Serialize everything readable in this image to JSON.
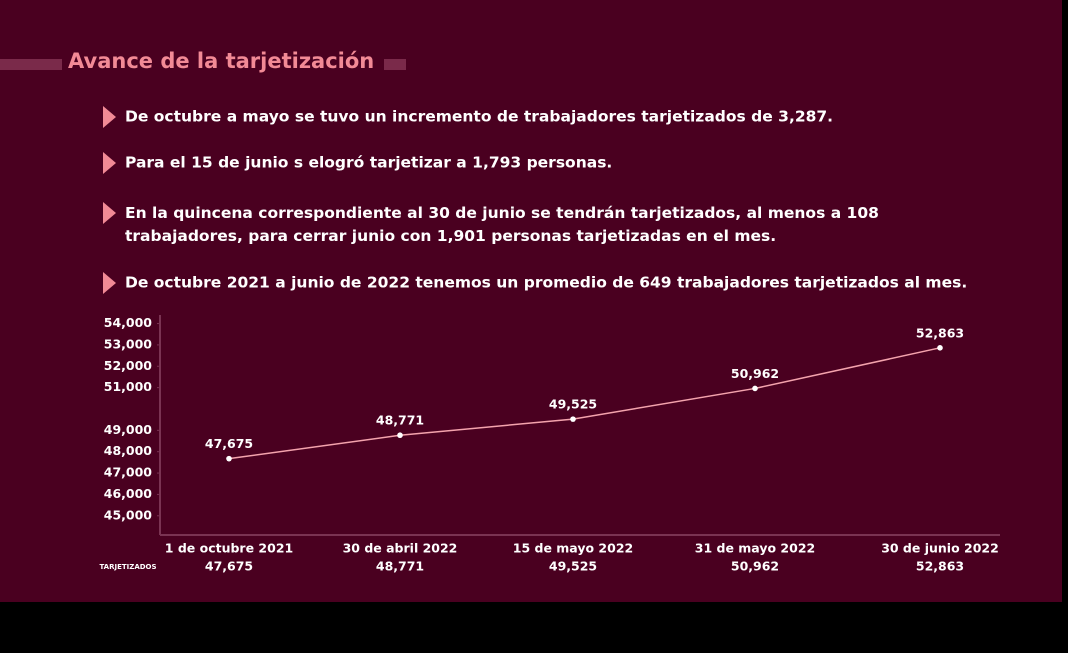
{
  "header": {
    "title": "Avance de la tarjetización"
  },
  "bullets": [
    "De octubre a mayo se tuvo un incremento de trabajadores tarjetizados de 3,287.",
    "Para el 15 de junio s elogró tarjetizar a 1,793 personas.",
    "En la quincena correspondiente al 30 de junio se tendrán tarjetizados, al menos a 108 trabajadores, para cerrar junio con 1,901 personas tarjetizadas en el mes.",
    "De octubre 2021 a junio de 2022 tenemos un promedio de 649 trabajadores tarjetizados al mes."
  ],
  "chart_data": {
    "type": "line",
    "categories": [
      "1 de octubre 2021",
      "30 de abril 2022",
      "15 de mayo 2022",
      "31 de mayo 2022",
      "30 de junio 2022"
    ],
    "series": [
      {
        "name": "TARJETIZADOS",
        "color": "#f4a3ad",
        "values": [
          47675,
          48771,
          49525,
          50962,
          52863
        ],
        "value_labels": [
          "47,675",
          "48,771",
          "49,525",
          "50,962",
          "52,863"
        ]
      }
    ],
    "ylim": [
      44100,
      54400
    ],
    "yticks": [
      {
        "value": 45000,
        "label": "45,000"
      },
      {
        "value": 46000,
        "label": "46,000"
      },
      {
        "value": 47000,
        "label": "47,000"
      },
      {
        "value": 48000,
        "label": "48,000"
      },
      {
        "value": 49000,
        "label": "49,000"
      },
      {
        "value": 51000,
        "label": "51,000"
      },
      {
        "value": 52000,
        "label": "52,000"
      },
      {
        "value": 53000,
        "label": "53,000"
      },
      {
        "value": 54000,
        "label": "54,000"
      }
    ],
    "grid": false
  }
}
